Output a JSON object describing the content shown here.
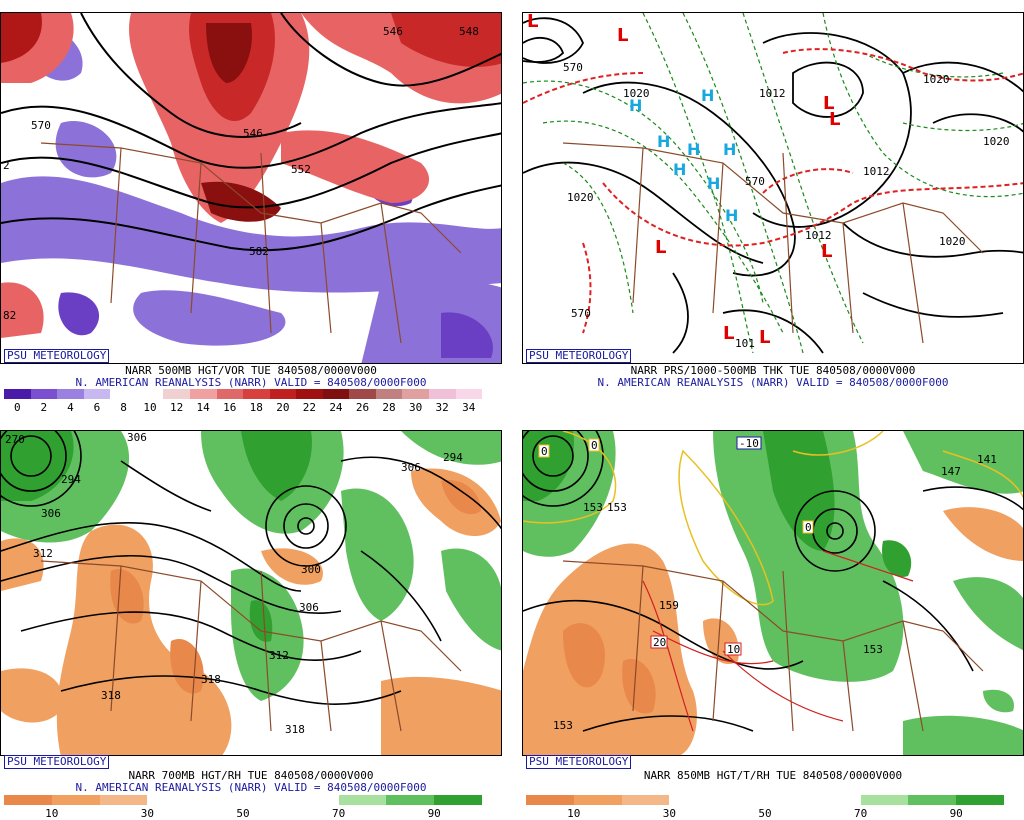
{
  "panels": [
    {
      "badge": "PSU METEOROLOGY",
      "caption1": "NARR 500MB HGT/VOR TUE 840508/0000V000",
      "caption2": "N. AMERICAN REANALYSIS (NARR) VALID = 840508/0000F000",
      "colorbar": [
        "#4a1aa8",
        "#7a50d0",
        "#9a80e0",
        "#c8b8f0",
        "#ffffff",
        "#ffffff",
        "#f0d0d0",
        "#f0a0a0",
        "#e06868",
        "#d84040",
        "#c02020",
        "#a01010",
        "#801010",
        "#a04848",
        "#c08080",
        "#e0a0a0",
        "#f0c0d8",
        "#f8d8e8"
      ],
      "ticks": [
        "0",
        "2",
        "4",
        "6",
        "8",
        "10",
        "12",
        "14",
        "16",
        "18",
        "20",
        "22",
        "24",
        "26",
        "28",
        "30",
        "32",
        "34"
      ],
      "labels": [
        "546",
        "548",
        "570",
        "546",
        "552",
        "582",
        "2",
        "82"
      ]
    },
    {
      "badge": "PSU METEOROLOGY",
      "caption1": "NARR PRS/1000-500MB THK TUE 840508/0000V000",
      "caption2": "N. AMERICAN REANALYSIS (NARR) VALID = 840508/0000F000",
      "labels": [
        "1020",
        "1020",
        "1012",
        "1020",
        "1020",
        "1020",
        "1012",
        "570",
        "570",
        "570",
        "1012",
        "101"
      ],
      "highs": [
        "H",
        "H",
        "H",
        "H",
        "H",
        "H",
        "H",
        "H"
      ],
      "lows": [
        "L",
        "L",
        "L",
        "L",
        "L",
        "L",
        "L",
        "L"
      ]
    },
    {
      "badge": "PSU METEOROLOGY",
      "caption1": "NARR 700MB HGT/RH TUE 840508/0000V000",
      "caption2": "N. AMERICAN REANALYSIS (NARR) VALID = 840508/0000F000",
      "colorbar": [
        "#e8884a",
        "#f0a060",
        "#f4b888",
        "#ffffff",
        "#ffffff",
        "#ffffff",
        "#ffffff",
        "#a8e0a0",
        "#60c060",
        "#30a030"
      ],
      "ticks": [
        "10",
        "30",
        "50",
        "70",
        "90"
      ],
      "labels": [
        "270",
        "306",
        "294",
        "306",
        "306",
        "294",
        "300",
        "306",
        "312",
        "318",
        "318",
        "318",
        "312"
      ]
    },
    {
      "badge": "PSU METEOROLOGY",
      "caption1": "NARR 850MB HGT/T/RH TUE 840508/0000V000",
      "caption2": "",
      "colorbar": [
        "#e8884a",
        "#f0a060",
        "#f4b888",
        "#ffffff",
        "#ffffff",
        "#ffffff",
        "#ffffff",
        "#a8e0a0",
        "#60c060",
        "#30a030"
      ],
      "ticks": [
        "10",
        "30",
        "50",
        "70",
        "90"
      ],
      "labels": [
        "153",
        "147",
        "141",
        "153",
        "159",
        "20",
        "10",
        "153",
        "153",
        "-10",
        "0",
        "0",
        "0"
      ]
    }
  ]
}
